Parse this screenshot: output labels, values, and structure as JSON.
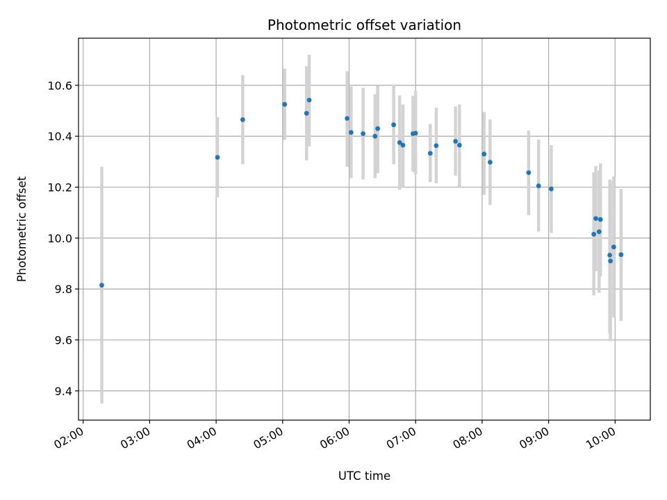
{
  "chart_data": {
    "type": "scatter",
    "title": "Photometric offset variation",
    "xlabel": "UTC time",
    "ylabel": "Photometric offset",
    "x_unit": "hours (UTC)",
    "xlim": [
      1.93,
      10.53
    ],
    "ylim": [
      9.285,
      10.785
    ],
    "x_ticks": [
      {
        "value": 2,
        "label": "02:00"
      },
      {
        "value": 3,
        "label": "03:00"
      },
      {
        "value": 4,
        "label": "04:00"
      },
      {
        "value": 5,
        "label": "05:00"
      },
      {
        "value": 6,
        "label": "06:00"
      },
      {
        "value": 7,
        "label": "07:00"
      },
      {
        "value": 8,
        "label": "08:00"
      },
      {
        "value": 9,
        "label": "09:00"
      },
      {
        "value": 10,
        "label": "10:00"
      }
    ],
    "y_ticks": [
      {
        "value": 9.4,
        "label": "9.4"
      },
      {
        "value": 9.6,
        "label": "9.6"
      },
      {
        "value": 9.8,
        "label": "9.8"
      },
      {
        "value": 10.0,
        "label": "10.0"
      },
      {
        "value": 10.2,
        "label": "10.2"
      },
      {
        "value": 10.4,
        "label": "10.4"
      },
      {
        "value": 10.6,
        "label": "10.6"
      }
    ],
    "grid": true,
    "legend": "none",
    "colors": {
      "point": "#1f77b4",
      "error_bar": "#d3d3d3",
      "grid": "#b0b0b0"
    },
    "points": [
      {
        "x": 2.28,
        "y": 9.815,
        "ylo": 9.35,
        "yhi": 10.28
      },
      {
        "x": 4.02,
        "y": 10.317,
        "ylo": 10.16,
        "yhi": 10.475
      },
      {
        "x": 4.4,
        "y": 10.465,
        "ylo": 10.29,
        "yhi": 10.64
      },
      {
        "x": 5.03,
        "y": 10.525,
        "ylo": 10.385,
        "yhi": 10.665
      },
      {
        "x": 5.36,
        "y": 10.49,
        "ylo": 10.305,
        "yhi": 10.675
      },
      {
        "x": 5.4,
        "y": 10.542,
        "ylo": 10.36,
        "yhi": 10.72
      },
      {
        "x": 5.97,
        "y": 10.47,
        "ylo": 10.28,
        "yhi": 10.655
      },
      {
        "x": 6.03,
        "y": 10.415,
        "ylo": 10.235,
        "yhi": 10.595
      },
      {
        "x": 6.21,
        "y": 10.41,
        "ylo": 10.23,
        "yhi": 10.59
      },
      {
        "x": 6.39,
        "y": 10.4,
        "ylo": 10.235,
        "yhi": 10.565
      },
      {
        "x": 6.43,
        "y": 10.43,
        "ylo": 10.255,
        "yhi": 10.598
      },
      {
        "x": 6.67,
        "y": 10.445,
        "ylo": 10.29,
        "yhi": 10.603
      },
      {
        "x": 6.76,
        "y": 10.375,
        "ylo": 10.19,
        "yhi": 10.56
      },
      {
        "x": 6.81,
        "y": 10.365,
        "ylo": 10.2,
        "yhi": 10.525
      },
      {
        "x": 6.96,
        "y": 10.41,
        "ylo": 10.26,
        "yhi": 10.558
      },
      {
        "x": 7.0,
        "y": 10.412,
        "ylo": 10.25,
        "yhi": 10.578
      },
      {
        "x": 7.22,
        "y": 10.333,
        "ylo": 10.22,
        "yhi": 10.448
      },
      {
        "x": 7.31,
        "y": 10.363,
        "ylo": 10.215,
        "yhi": 10.512
      },
      {
        "x": 7.6,
        "y": 10.38,
        "ylo": 10.245,
        "yhi": 10.517
      },
      {
        "x": 7.66,
        "y": 10.365,
        "ylo": 10.2,
        "yhi": 10.525
      },
      {
        "x": 8.03,
        "y": 10.33,
        "ylo": 10.17,
        "yhi": 10.495
      },
      {
        "x": 8.12,
        "y": 10.298,
        "ylo": 10.13,
        "yhi": 10.466
      },
      {
        "x": 8.7,
        "y": 10.257,
        "ylo": 10.09,
        "yhi": 10.422
      },
      {
        "x": 8.85,
        "y": 10.205,
        "ylo": 10.025,
        "yhi": 10.387
      },
      {
        "x": 9.04,
        "y": 10.193,
        "ylo": 10.02,
        "yhi": 10.365
      },
      {
        "x": 9.68,
        "y": 10.015,
        "ylo": 9.775,
        "yhi": 10.258
      },
      {
        "x": 9.71,
        "y": 10.077,
        "ylo": 9.87,
        "yhi": 10.283
      },
      {
        "x": 9.76,
        "y": 10.025,
        "ylo": 9.785,
        "yhi": 10.265
      },
      {
        "x": 9.78,
        "y": 10.073,
        "ylo": 9.85,
        "yhi": 10.293
      },
      {
        "x": 9.92,
        "y": 9.933,
        "ylo": 9.625,
        "yhi": 10.23
      },
      {
        "x": 9.93,
        "y": 9.91,
        "ylo": 9.595,
        "yhi": 10.225
      },
      {
        "x": 9.98,
        "y": 9.965,
        "ylo": 9.688,
        "yhi": 10.243
      },
      {
        "x": 10.09,
        "y": 9.935,
        "ylo": 9.675,
        "yhi": 10.193
      }
    ]
  }
}
